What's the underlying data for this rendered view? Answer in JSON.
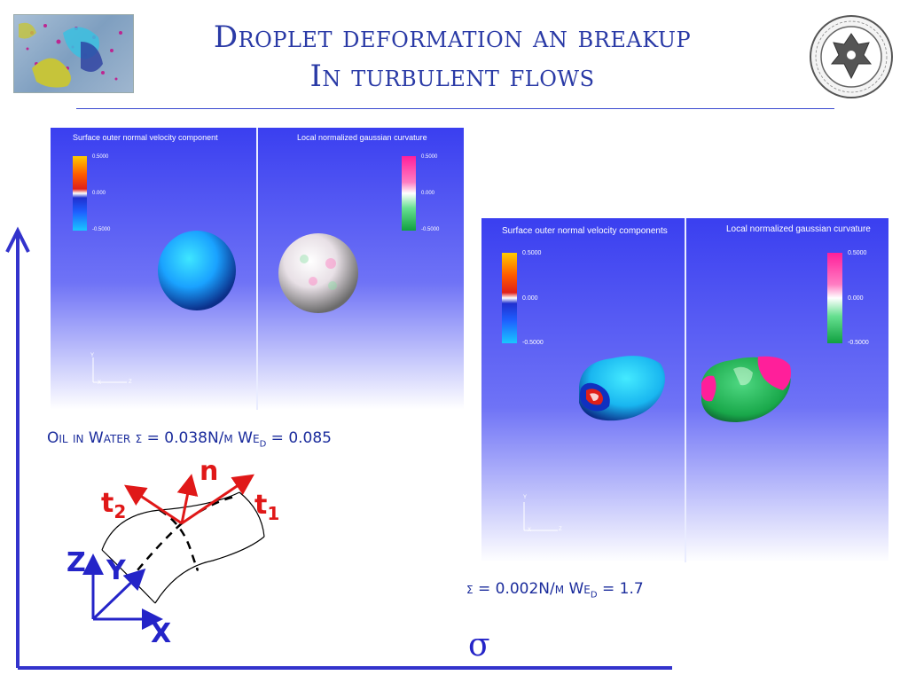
{
  "slide": {
    "title_line1": "Droplet deformation an breakup",
    "title_line2": "In turbulent flows"
  },
  "panel_small": {
    "left_title": "Surface outer normal velocity component",
    "right_title": "Local normalized gaussian curvature",
    "left_scale": [
      "0.5000",
      "0.000",
      "-0.5000"
    ],
    "right_scale": [
      "0.5000",
      "0.000",
      "-0.5000"
    ],
    "axis_y": "Y",
    "axis_x": "X",
    "axis_z": "Z"
  },
  "panel_large": {
    "left_title": "Surface outer normal velocity components",
    "right_title": "Local normalized gaussian curvature",
    "left_scale": [
      "0.5000",
      "0.000",
      "-0.5000"
    ],
    "right_scale": [
      "0.5000",
      "0.000",
      "-0.5000"
    ],
    "axis_y": "Y",
    "axis_x": "X",
    "axis_z": "Z"
  },
  "captions": {
    "left_text": "Oil in Water σ = 0.038N/m  We",
    "left_sub": "D",
    "left_end": " = 0.085",
    "right_text": "σ = 0.002N/m We",
    "right_sub": "D",
    "right_end": " = 1.7"
  },
  "diagram": {
    "normal": "n",
    "t1": "t",
    "t1_sub": "1",
    "t2": "t",
    "t2_sub": "2",
    "axis_z": "Z",
    "axis_y": "Y",
    "axis_x": "X"
  },
  "axis_sigma": "σ",
  "colors": {
    "title": "#2a3aa6",
    "accent_blue": "#2424c8",
    "red": "#e01818"
  }
}
